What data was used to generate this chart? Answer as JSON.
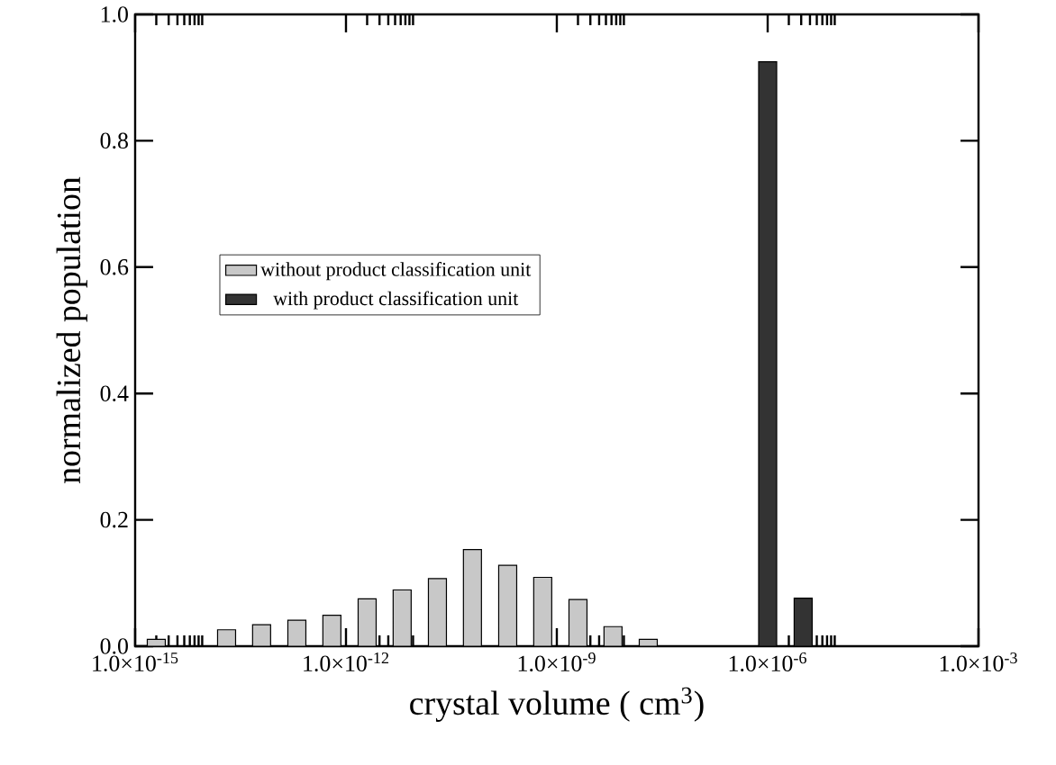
{
  "chart_data": {
    "type": "bar",
    "xlabel": "crystal volume ( cm$^{3}$)",
    "ylabel": "normalized population",
    "log": "x",
    "xlim": [
      1e-15,
      0.001
    ],
    "ylim": [
      0,
      1
    ],
    "xticks": [
      {
        "value": 1e-15,
        "label": "1.0×10$^{-15}$"
      },
      {
        "value": 1e-12,
        "label": "1.0×10$^{-12}$"
      },
      {
        "value": 1e-09,
        "label": "1.0×10$^{-9}$"
      },
      {
        "value": 1e-06,
        "label": "1.0×10$^{-6}$"
      },
      {
        "value": 0.001,
        "label": "1.0×10$^{-3}$"
      }
    ],
    "yticks": [
      {
        "value": 0,
        "label": "0.0"
      },
      {
        "value": 0.2,
        "label": "0.2"
      },
      {
        "value": 0.4,
        "label": "0.4"
      },
      {
        "value": 0.6,
        "label": "0.6"
      },
      {
        "value": 0.8,
        "label": "0.8"
      },
      {
        "value": 1,
        "label": "1.0"
      }
    ],
    "legend": "left",
    "grid": false,
    "series": [
      {
        "name": "without product classification unit",
        "color": "#c8c8c8",
        "x": [
          2e-15,
          2e-14,
          6.3e-14,
          2e-13,
          6.3e-13,
          2e-12,
          6.3e-12,
          2e-11,
          6.3e-11,
          2e-10,
          6.3e-10,
          2e-09,
          6.3e-09,
          2e-08
        ],
        "values": [
          0.011,
          0.026,
          0.034,
          0.041,
          0.049,
          0.075,
          0.089,
          0.107,
          0.153,
          0.128,
          0.109,
          0.074,
          0.031,
          0.011
        ]
      },
      {
        "name": "with product classification unit",
        "color": "#333333",
        "x": [
          1e-06,
          3.2e-06
        ],
        "values": [
          0.925,
          0.076
        ]
      }
    ]
  }
}
